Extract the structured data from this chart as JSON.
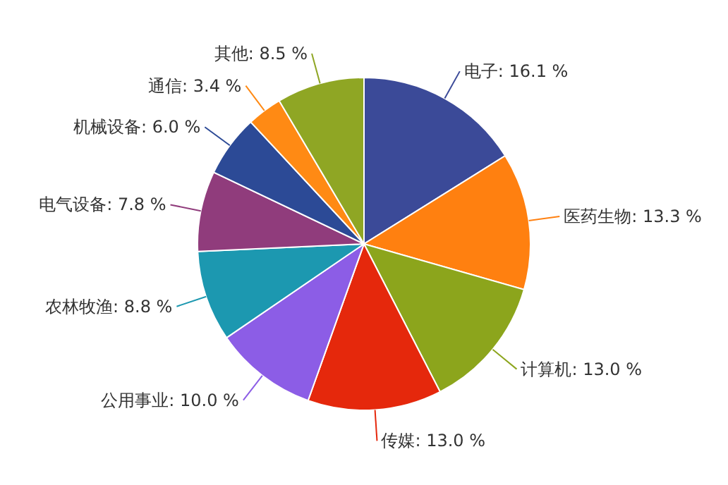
{
  "chart_data": {
    "type": "pie",
    "categories": [
      "电子",
      "医药生物",
      "计算机",
      "传媒",
      "公用事业",
      "农林牧渔",
      "电气设备",
      "机械设备",
      "通信",
      "其他"
    ],
    "values": [
      16.1,
      13.3,
      13.0,
      13.0,
      10.0,
      8.8,
      7.8,
      6.0,
      3.4,
      8.5
    ],
    "value_labels": [
      ": 16.1 %",
      ": 13.3 %",
      ": 13.0 %",
      ": 13.0 %",
      ": 10.0 %",
      ": 8.8 %",
      ": 7.8 %",
      ": 6.0 %",
      ": 3.4 %",
      ": 8.5 %"
    ],
    "colors": [
      "#3b4a98",
      "#ff8010",
      "#8ca51c",
      "#e5280c",
      "#8c5de6",
      "#1c98b0",
      "#903c7c",
      "#2c4a96",
      "#ff8a14",
      "#8fa624"
    ],
    "legend": false
  }
}
